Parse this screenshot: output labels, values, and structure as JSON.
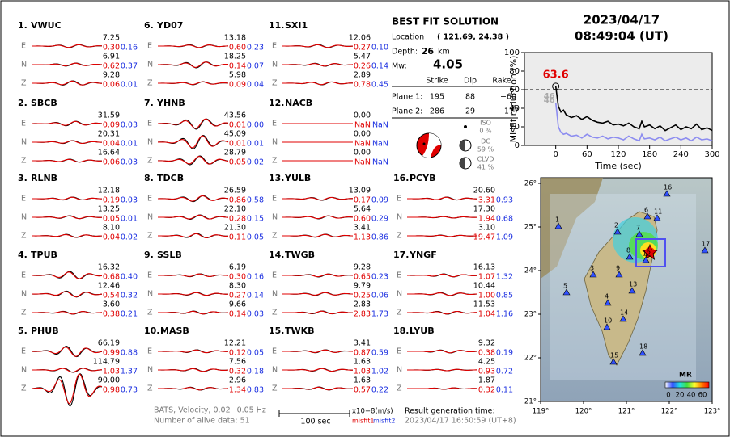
{
  "event": {
    "date": "2023/04/17",
    "time": "08:49:04  (UT)"
  },
  "stations": [
    {
      "num": "1.",
      "name": "VWUC",
      "comps": [
        {
          "comp": "E",
          "amp": "7.25",
          "m1": "0.30",
          "m2": "0.16"
        },
        {
          "comp": "N",
          "amp": "6.91",
          "m1": "0.62",
          "m2": "0.37"
        },
        {
          "comp": "Z",
          "amp": "9.28",
          "m1": "0.06",
          "m2": "0.01"
        }
      ]
    },
    {
      "num": "2.",
      "name": "SBCB",
      "comps": [
        {
          "comp": "E",
          "amp": "31.59",
          "m1": "0.09",
          "m2": "0.03"
        },
        {
          "comp": "N",
          "amp": "20.31",
          "m1": "0.04",
          "m2": "0.01"
        },
        {
          "comp": "Z",
          "amp": "16.64",
          "m1": "0.06",
          "m2": "0.03"
        }
      ]
    },
    {
      "num": "3.",
      "name": "RLNB",
      "comps": [
        {
          "comp": "E",
          "amp": "12.18",
          "m1": "0.19",
          "m2": "0.03"
        },
        {
          "comp": "N",
          "amp": "13.25",
          "m1": "0.05",
          "m2": "0.01"
        },
        {
          "comp": "Z",
          "amp": "8.10",
          "m1": "0.04",
          "m2": "0.02"
        }
      ]
    },
    {
      "num": "4.",
      "name": "TPUB",
      "comps": [
        {
          "comp": "E",
          "amp": "16.32",
          "m1": "0.68",
          "m2": "0.40"
        },
        {
          "comp": "N",
          "amp": "12.46",
          "m1": "0.54",
          "m2": "0.32"
        },
        {
          "comp": "Z",
          "amp": "3.60",
          "m1": "0.38",
          "m2": "0.21"
        }
      ]
    },
    {
      "num": "5.",
      "name": "PHUB",
      "comps": [
        {
          "comp": "E",
          "amp": "66.19",
          "m1": "0.99",
          "m2": "0.88"
        },
        {
          "comp": "N",
          "amp": "114.79",
          "m1": "1.03",
          "m2": "1.37"
        },
        {
          "comp": "Z",
          "amp": "90.00",
          "m1": "0.98",
          "m2": "0.73"
        }
      ]
    },
    {
      "num": "6.",
      "name": "YD07",
      "comps": [
        {
          "comp": "E",
          "amp": "13.18",
          "m1": "0.60",
          "m2": "0.23"
        },
        {
          "comp": "N",
          "amp": "18.25",
          "m1": "0.14",
          "m2": "0.07"
        },
        {
          "comp": "Z",
          "amp": "5.98",
          "m1": "0.09",
          "m2": "0.04"
        }
      ]
    },
    {
      "num": "7.",
      "name": "YHNB",
      "comps": [
        {
          "comp": "E",
          "amp": "43.56",
          "m1": "0.01",
          "m2": "0.00"
        },
        {
          "comp": "N",
          "amp": "45.09",
          "m1": "0.01",
          "m2": "0.01"
        },
        {
          "comp": "Z",
          "amp": "28.79",
          "m1": "0.05",
          "m2": "0.02"
        }
      ]
    },
    {
      "num": "8.",
      "name": "TDCB",
      "comps": [
        {
          "comp": "E",
          "amp": "26.59",
          "m1": "0.86",
          "m2": "0.58"
        },
        {
          "comp": "N",
          "amp": "22.10",
          "m1": "0.28",
          "m2": "0.15"
        },
        {
          "comp": "Z",
          "amp": "21.30",
          "m1": "0.11",
          "m2": "0.05"
        }
      ]
    },
    {
      "num": "9.",
      "name": "SSLB",
      "comps": [
        {
          "comp": "E",
          "amp": "6.19",
          "m1": "0.30",
          "m2": "0.16"
        },
        {
          "comp": "N",
          "amp": "8.30",
          "m1": "0.27",
          "m2": "0.14"
        },
        {
          "comp": "Z",
          "amp": "9.66",
          "m1": "0.14",
          "m2": "0.03"
        }
      ]
    },
    {
      "num": "10.",
      "name": "MASB",
      "comps": [
        {
          "comp": "E",
          "amp": "12.21",
          "m1": "0.12",
          "m2": "0.05"
        },
        {
          "comp": "N",
          "amp": "7.56",
          "m1": "0.32",
          "m2": "0.18"
        },
        {
          "comp": "Z",
          "amp": "2.96",
          "m1": "1.34",
          "m2": "0.83"
        }
      ]
    },
    {
      "num": "11.",
      "name": "SXI1",
      "comps": [
        {
          "comp": "E",
          "amp": "12.06",
          "m1": "0.27",
          "m2": "0.10"
        },
        {
          "comp": "N",
          "amp": "5.47",
          "m1": "0.26",
          "m2": "0.14"
        },
        {
          "comp": "Z",
          "amp": "2.89",
          "m1": "0.78",
          "m2": "0.45"
        }
      ]
    },
    {
      "num": "12.",
      "name": "NACB",
      "comps": [
        {
          "comp": "E",
          "amp": "0.00",
          "m1": "NaN",
          "m2": "NaN"
        },
        {
          "comp": "N",
          "amp": "0.00",
          "m1": "NaN",
          "m2": "NaN"
        },
        {
          "comp": "Z",
          "amp": "0.00",
          "m1": "NaN",
          "m2": "NaN"
        }
      ]
    },
    {
      "num": "13.",
      "name": "YULB",
      "comps": [
        {
          "comp": "E",
          "amp": "13.09",
          "m1": "0.17",
          "m2": "0.09"
        },
        {
          "comp": "N",
          "amp": "5.64",
          "m1": "0.60",
          "m2": "0.29"
        },
        {
          "comp": "Z",
          "amp": "3.41",
          "m1": "1.13",
          "m2": "0.86"
        }
      ]
    },
    {
      "num": "14.",
      "name": "TWGB",
      "comps": [
        {
          "comp": "E",
          "amp": "9.28",
          "m1": "0.65",
          "m2": "0.23"
        },
        {
          "comp": "N",
          "amp": "9.79",
          "m1": "0.25",
          "m2": "0.06"
        },
        {
          "comp": "Z",
          "amp": "2.83",
          "m1": "2.83",
          "m2": "1.73"
        }
      ]
    },
    {
      "num": "15.",
      "name": "TWKB",
      "comps": [
        {
          "comp": "E",
          "amp": "3.41",
          "m1": "0.87",
          "m2": "0.59"
        },
        {
          "comp": "N",
          "amp": "1.63",
          "m1": "1.03",
          "m2": "1.02"
        },
        {
          "comp": "Z",
          "amp": "1.63",
          "m1": "0.57",
          "m2": "0.22"
        }
      ]
    },
    {
      "num": "16.",
      "name": "PCYB",
      "comps": [
        {
          "comp": "E",
          "amp": "20.60",
          "m1": "3.31",
          "m2": "0.93"
        },
        {
          "comp": "N",
          "amp": "17.30",
          "m1": "1.94",
          "m2": "0.68"
        },
        {
          "comp": "Z",
          "amp": "3.10",
          "m1": "19.47",
          "m2": "1.09"
        }
      ]
    },
    {
      "num": "17.",
      "name": "YNGF",
      "comps": [
        {
          "comp": "E",
          "amp": "16.13",
          "m1": "1.07",
          "m2": "1.32"
        },
        {
          "comp": "N",
          "amp": "10.44",
          "m1": "1.00",
          "m2": "0.85"
        },
        {
          "comp": "Z",
          "amp": "11.53",
          "m1": "1.04",
          "m2": "1.16"
        }
      ]
    },
    {
      "num": "18.",
      "name": "LYUB",
      "comps": [
        {
          "comp": "E",
          "amp": "9.32",
          "m1": "0.38",
          "m2": "0.19"
        },
        {
          "comp": "N",
          "amp": "4.25",
          "m1": "0.93",
          "m2": "0.72"
        },
        {
          "comp": "Z",
          "amp": "1.87",
          "m1": "0.32",
          "m2": "0.11"
        }
      ]
    }
  ],
  "solution": {
    "title": "BEST FIT SOLUTION",
    "location_label": "Location",
    "location": "( 121.69, 24.38 )",
    "depth_label": "Depth:",
    "depth": "26",
    "depth_unit": "km",
    "mw_label": "Mw:",
    "mw": "4.05",
    "headers": [
      "Strike",
      "Dip",
      "Rake"
    ],
    "planes": [
      {
        "label": "Plane 1:",
        "values": [
          "195",
          "88",
          "−60"
        ]
      },
      {
        "label": "Plane 2:",
        "values": [
          "286",
          "29",
          "−177"
        ]
      }
    ],
    "components": [
      {
        "name": "ISO",
        "pct": "0 %"
      },
      {
        "name": "DC",
        "pct": "59 %"
      },
      {
        "name": "CLVD",
        "pct": "41 %"
      }
    ]
  },
  "chart_data": {
    "type": "line",
    "x_label": "Time (sec)",
    "y_label": "Misfit reduction (%)",
    "xlim": [
      -60,
      300
    ],
    "xticks": [
      0,
      60,
      120,
      180,
      240,
      300
    ],
    "ylim": [
      0,
      100
    ],
    "yticks": [
      0,
      20,
      40,
      60,
      80,
      100
    ],
    "reference_line": 60,
    "annotations": [
      "63.6",
      "46",
      "46"
    ],
    "x": [
      0,
      5,
      10,
      15,
      20,
      30,
      40,
      50,
      60,
      70,
      80,
      90,
      100,
      110,
      120,
      130,
      140,
      150,
      160,
      165,
      170,
      180,
      190,
      200,
      210,
      220,
      230,
      240,
      250,
      260,
      270,
      280,
      290,
      300
    ],
    "series": [
      {
        "color": "#000000",
        "values": [
          63.6,
          42,
          36,
          38,
          33,
          30,
          32,
          28,
          31,
          27,
          25,
          24,
          26,
          22,
          23,
          21,
          24,
          20,
          18,
          26,
          20,
          22,
          18,
          21,
          16,
          19,
          22,
          17,
          20,
          18,
          23,
          17,
          19,
          16
        ]
      },
      {
        "color": "#8c8cf0",
        "values": [
          46,
          20,
          14,
          12,
          13,
          10,
          11,
          8,
          12,
          9,
          8,
          10,
          7,
          9,
          8,
          6,
          10,
          7,
          5,
          12,
          7,
          8,
          6,
          9,
          5,
          7,
          9,
          6,
          8,
          5,
          9,
          6,
          7,
          5
        ]
      }
    ]
  },
  "map": {
    "lat_ticks": [
      "26°",
      "25°",
      "24°",
      "23°",
      "22°",
      "21°"
    ],
    "lon_ticks": [
      "119°",
      "120°",
      "121°",
      "122°",
      "123°"
    ],
    "station_labels": [
      "1",
      "2",
      "3",
      "4",
      "5",
      "6",
      "7",
      "8",
      "9",
      "10",
      "11",
      "12",
      "13",
      "14",
      "15",
      "16",
      "17",
      "18"
    ],
    "colorbar_title": "MR",
    "colorbar_ticks": [
      "0",
      "20",
      "40",
      "60"
    ]
  },
  "footer": {
    "filter": "BATS, Velocity, 0.02−0.05 Hz",
    "alive": "Number of alive data: 51",
    "scale": "100 sec",
    "unit": "x10−8(m/s)",
    "misfit1": "misfit1",
    "misfit2": "misfit2",
    "generation_label": "Result generation time:",
    "generation_time": "2023/04/17 16:50:59 (UT+8)"
  }
}
